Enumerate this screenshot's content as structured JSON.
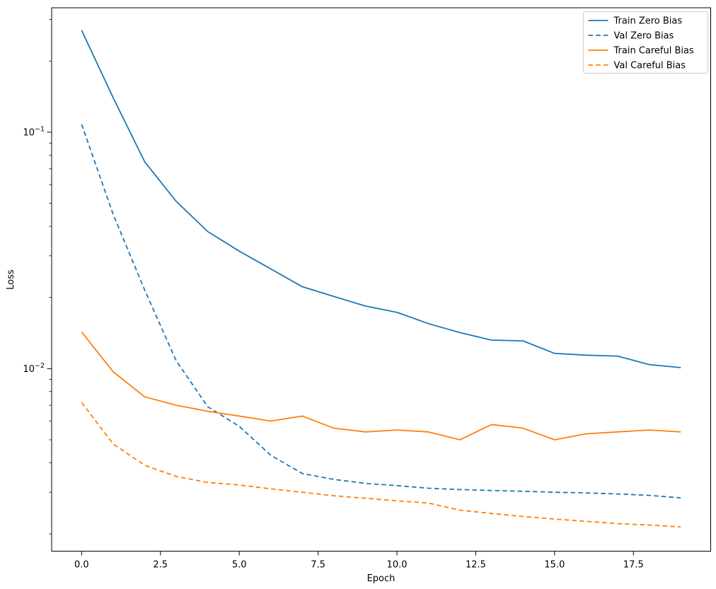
{
  "chart_data": {
    "type": "line",
    "title": "",
    "xlabel": "Epoch",
    "ylabel": "Loss",
    "yscale": "log",
    "grid": false,
    "legend_position": "upper right",
    "xlim": [
      -0.95,
      19.95
    ],
    "ylim": [
      0.00169,
      0.336
    ],
    "x": [
      0,
      1,
      2,
      3,
      4,
      5,
      6,
      7,
      8,
      9,
      10,
      11,
      12,
      13,
      14,
      15,
      16,
      17,
      18,
      19
    ],
    "xticks": [
      0,
      2.5,
      5,
      7.5,
      10,
      12.5,
      15,
      17.5
    ],
    "xtick_labels": [
      "0.0",
      "2.5",
      "5.0",
      "7.5",
      "10.0",
      "12.5",
      "15.0",
      "17.5"
    ],
    "yticks": [
      {
        "value": 0.1,
        "base": "10",
        "exponent": "−1"
      },
      {
        "value": 0.01,
        "base": "10",
        "exponent": "−2"
      }
    ],
    "series": [
      {
        "name": "Train Zero Bias",
        "color": "#1f77b4",
        "style": "solid",
        "values": [
          0.27,
          0.14,
          0.075,
          0.051,
          0.038,
          0.0314,
          0.0264,
          0.0222,
          0.0202,
          0.0184,
          0.0173,
          0.0155,
          0.0142,
          0.0132,
          0.0131,
          0.0116,
          0.0114,
          0.0113,
          0.0104,
          0.0101
        ]
      },
      {
        "name": "Val Zero Bias",
        "color": "#1f77b4",
        "style": "dashed",
        "values": [
          0.108,
          0.045,
          0.0215,
          0.0108,
          0.0069,
          0.0057,
          0.0043,
          0.0036,
          0.0034,
          0.00327,
          0.0032,
          0.00312,
          0.00308,
          0.00305,
          0.00303,
          0.003,
          0.00298,
          0.00295,
          0.00291,
          0.00284
        ]
      },
      {
        "name": "Train Careful Bias",
        "color": "#ff7f0e",
        "style": "solid",
        "values": [
          0.0143,
          0.0097,
          0.0076,
          0.007,
          0.0066,
          0.0063,
          0.006,
          0.0063,
          0.0056,
          0.0054,
          0.0055,
          0.0054,
          0.005,
          0.0058,
          0.0056,
          0.005,
          0.0053,
          0.0054,
          0.0055,
          0.0054
        ]
      },
      {
        "name": "Val Careful Bias",
        "color": "#ff7f0e",
        "style": "dashed",
        "values": [
          0.0072,
          0.0048,
          0.0039,
          0.0035,
          0.0033,
          0.00322,
          0.0031,
          0.003,
          0.0029,
          0.00283,
          0.00276,
          0.0027,
          0.00252,
          0.00244,
          0.00237,
          0.00231,
          0.00226,
          0.00221,
          0.00218,
          0.00214
        ]
      }
    ],
    "axis_color": "#000000",
    "legend_border_color": "#cccccc",
    "legend_background": "#ffffff"
  }
}
